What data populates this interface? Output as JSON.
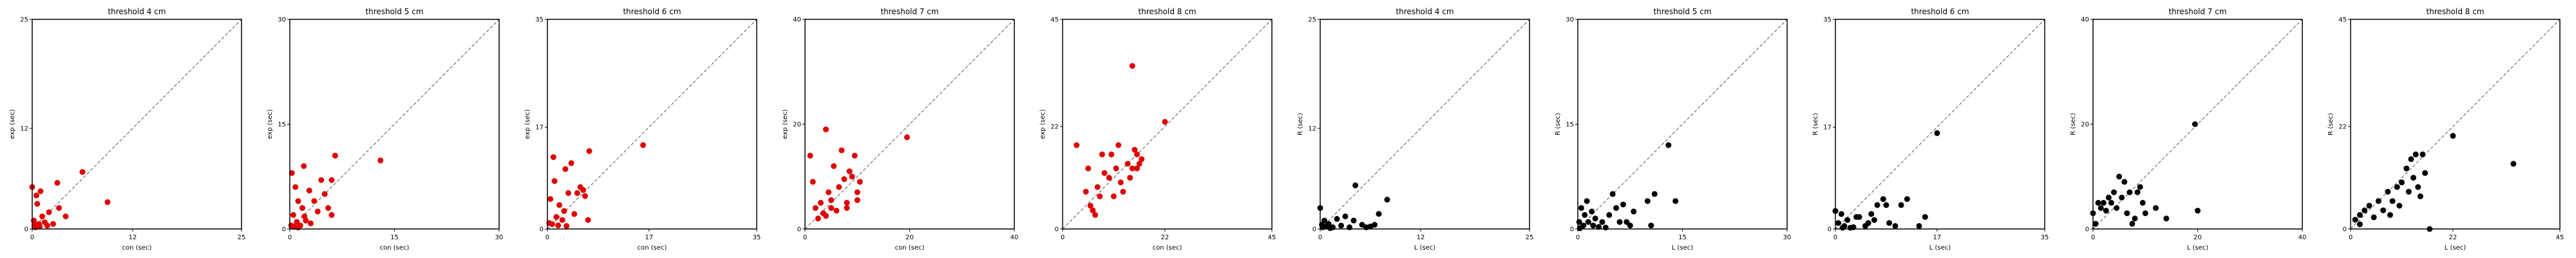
{
  "chart_data": [
    {
      "type": "scatter",
      "title": "threshold 4 cm",
      "xlabel": "con (sec)",
      "ylabel": "exp (sec)",
      "xlim": [
        0,
        25
      ],
      "ylim": [
        0,
        25
      ],
      "ticks": [
        0,
        12,
        25
      ],
      "color": "#e00000",
      "points": [
        [
          0,
          5
        ],
        [
          0.2,
          1
        ],
        [
          0.3,
          0.5
        ],
        [
          0.5,
          4
        ],
        [
          0.6,
          3
        ],
        [
          0.8,
          0.6
        ],
        [
          1,
          4.5
        ],
        [
          1.2,
          1.5
        ],
        [
          1.5,
          0.8
        ],
        [
          2,
          2
        ],
        [
          0.4,
          0.2
        ],
        [
          0.9,
          0.3
        ],
        [
          2.5,
          0.6
        ],
        [
          3,
          5.5
        ],
        [
          4,
          1.5
        ],
        [
          6,
          6.8
        ],
        [
          9,
          3.2
        ],
        [
          3.2,
          2.5
        ],
        [
          1.8,
          0.4
        ]
      ]
    },
    {
      "type": "scatter",
      "title": "threshold 5 cm",
      "xlabel": "con (sec)",
      "ylabel": "exp (sec)",
      "xlim": [
        0,
        30
      ],
      "ylim": [
        0,
        30
      ],
      "ticks": [
        0,
        15,
        30
      ],
      "color": "#e00000",
      "points": [
        [
          0.2,
          0.5
        ],
        [
          0.5,
          2
        ],
        [
          0.8,
          6
        ],
        [
          1,
          1
        ],
        [
          1.2,
          4
        ],
        [
          1.5,
          0.5
        ],
        [
          1.8,
          3
        ],
        [
          2,
          9
        ],
        [
          2.3,
          1.2
        ],
        [
          2.8,
          5.5
        ],
        [
          3,
          0.8
        ],
        [
          3.5,
          4
        ],
        [
          4,
          2.5
        ],
        [
          4.5,
          7
        ],
        [
          5,
          5
        ],
        [
          5.5,
          3
        ],
        [
          6,
          7
        ],
        [
          6,
          2
        ],
        [
          6.5,
          10.5
        ],
        [
          0.3,
          8
        ],
        [
          1.2,
          0.2
        ],
        [
          0.6,
          0.3
        ],
        [
          13,
          9.8
        ],
        [
          2.1,
          1.8
        ]
      ]
    },
    {
      "type": "scatter",
      "title": "threshold 6 cm",
      "xlabel": "con (sec)",
      "ylabel": "exp (sec)",
      "xlim": [
        0,
        35
      ],
      "ylim": [
        0,
        35
      ],
      "ticks": [
        0,
        17,
        35
      ],
      "color": "#e00000",
      "points": [
        [
          0.3,
          1
        ],
        [
          0.5,
          5
        ],
        [
          1,
          12
        ],
        [
          1.2,
          8
        ],
        [
          1.5,
          2
        ],
        [
          2,
          4
        ],
        [
          2.5,
          1.5
        ],
        [
          2.8,
          3
        ],
        [
          3,
          10
        ],
        [
          3.2,
          0.5
        ],
        [
          3.5,
          6
        ],
        [
          4,
          11
        ],
        [
          4.5,
          2.5
        ],
        [
          5,
          6
        ],
        [
          5.5,
          7
        ],
        [
          6,
          6.5
        ],
        [
          6.3,
          5.5
        ],
        [
          6.8,
          1.5
        ],
        [
          7,
          13
        ],
        [
          16,
          14
        ],
        [
          1.8,
          0.6
        ],
        [
          0.8,
          0.8
        ]
      ]
    },
    {
      "type": "scatter",
      "title": "threshold 7 cm",
      "xlabel": "con (sec)",
      "ylabel": "exp (sec)",
      "xlim": [
        0,
        40
      ],
      "ylim": [
        0,
        40
      ],
      "ticks": [
        0,
        20,
        40
      ],
      "color": "#e00000",
      "points": [
        [
          1,
          14
        ],
        [
          1.5,
          9
        ],
        [
          2,
          4
        ],
        [
          2.5,
          2
        ],
        [
          3,
          5
        ],
        [
          3.5,
          3
        ],
        [
          4,
          2.5
        ],
        [
          4.5,
          7
        ],
        [
          4,
          19
        ],
        [
          5,
          4
        ],
        [
          5.5,
          12
        ],
        [
          6,
          3.5
        ],
        [
          6.5,
          8
        ],
        [
          7,
          15
        ],
        [
          7.5,
          9.5
        ],
        [
          8,
          5
        ],
        [
          8,
          4
        ],
        [
          8.5,
          11
        ],
        [
          9,
          10
        ],
        [
          9.5,
          14
        ],
        [
          10,
          7
        ],
        [
          10.5,
          9
        ],
        [
          10,
          5.5
        ],
        [
          19.5,
          17.5
        ],
        [
          5,
          5.5
        ]
      ]
    },
    {
      "type": "scatter",
      "title": "threshold 8 cm",
      "xlabel": "con (sec)",
      "ylabel": "exp (sec)",
      "xlim": [
        0,
        45
      ],
      "ylim": [
        0,
        45
      ],
      "ticks": [
        0,
        22,
        45
      ],
      "color": "#e00000",
      "points": [
        [
          3,
          18
        ],
        [
          5,
          8
        ],
        [
          5.5,
          13
        ],
        [
          6,
          5
        ],
        [
          6.5,
          4
        ],
        [
          7,
          3
        ],
        [
          7.5,
          9
        ],
        [
          8,
          7
        ],
        [
          8.5,
          16
        ],
        [
          9,
          12
        ],
        [
          10,
          11
        ],
        [
          10.5,
          16
        ],
        [
          11,
          7
        ],
        [
          11.5,
          13
        ],
        [
          12,
          18
        ],
        [
          12.5,
          10
        ],
        [
          13,
          8
        ],
        [
          14,
          14
        ],
        [
          14.5,
          11
        ],
        [
          15,
          13
        ],
        [
          15.5,
          17
        ],
        [
          16,
          16
        ],
        [
          16.5,
          14
        ],
        [
          17,
          15
        ],
        [
          15,
          35
        ],
        [
          22,
          23
        ],
        [
          16,
          13
        ]
      ]
    },
    {
      "type": "scatter",
      "title": "threshold 4 cm",
      "xlabel": "L (sec)",
      "ylabel": "R (sec)",
      "xlim": [
        0,
        25
      ],
      "ylim": [
        0,
        25
      ],
      "ticks": [
        0,
        12,
        25
      ],
      "color": "#000000",
      "points": [
        [
          0,
          2.5
        ],
        [
          0.2,
          0.5
        ],
        [
          0.5,
          1
        ],
        [
          0.8,
          0.3
        ],
        [
          1,
          0.6
        ],
        [
          1.5,
          0.2
        ],
        [
          2,
          1.2
        ],
        [
          2.5,
          0.4
        ],
        [
          3,
          1.5
        ],
        [
          3.5,
          0.2
        ],
        [
          4,
          1
        ],
        [
          4.2,
          5.2
        ],
        [
          5,
          0.5
        ],
        [
          5.5,
          0.2
        ],
        [
          6,
          0.3
        ],
        [
          6.5,
          0.5
        ],
        [
          7,
          1.8
        ],
        [
          8,
          3.5
        ],
        [
          1.2,
          0.1
        ],
        [
          0.3,
          0.2
        ]
      ]
    },
    {
      "type": "scatter",
      "title": "threshold 5 cm",
      "xlabel": "L (sec)",
      "ylabel": "R (sec)",
      "xlim": [
        0,
        30
      ],
      "ylim": [
        0,
        30
      ],
      "ticks": [
        0,
        15,
        30
      ],
      "color": "#000000",
      "points": [
        [
          0.2,
          1
        ],
        [
          0.5,
          3
        ],
        [
          0.8,
          0.5
        ],
        [
          1,
          2
        ],
        [
          1.3,
          4
        ],
        [
          1.5,
          1
        ],
        [
          2,
          2.5
        ],
        [
          2.2,
          0.5
        ],
        [
          2.5,
          1.5
        ],
        [
          3,
          0.3
        ],
        [
          3.5,
          1
        ],
        [
          4,
          0.2
        ],
        [
          4.5,
          2
        ],
        [
          5,
          5
        ],
        [
          5.5,
          3
        ],
        [
          6,
          1
        ],
        [
          6.5,
          3.5
        ],
        [
          7,
          1
        ],
        [
          7.5,
          0.5
        ],
        [
          8,
          2.5
        ],
        [
          10,
          4
        ],
        [
          10.5,
          0.5
        ],
        [
          11,
          5
        ],
        [
          13,
          12
        ],
        [
          14,
          4
        ],
        [
          0.3,
          0.1
        ]
      ]
    },
    {
      "type": "scatter",
      "title": "threshold 6 cm",
      "xlabel": "L (sec)",
      "ylabel": "R (sec)",
      "xlim": [
        0,
        35
      ],
      "ylim": [
        0,
        35
      ],
      "ticks": [
        0,
        17,
        35
      ],
      "color": "#000000",
      "points": [
        [
          0,
          3
        ],
        [
          0.5,
          1
        ],
        [
          1,
          2.5
        ],
        [
          1.5,
          0.5
        ],
        [
          2,
          1.5
        ],
        [
          2.5,
          0.2
        ],
        [
          3,
          0.3
        ],
        [
          3.5,
          2
        ],
        [
          4,
          2
        ],
        [
          5,
          0.5
        ],
        [
          5.5,
          1
        ],
        [
          6,
          2.5
        ],
        [
          6.5,
          1.5
        ],
        [
          7,
          4
        ],
        [
          8,
          5
        ],
        [
          8.5,
          4
        ],
        [
          9,
          1
        ],
        [
          10,
          0.5
        ],
        [
          11,
          4
        ],
        [
          12,
          5
        ],
        [
          14,
          0.5
        ],
        [
          15,
          2
        ],
        [
          17,
          16
        ],
        [
          3,
          0.3
        ],
        [
          1.2,
          0.2
        ]
      ]
    },
    {
      "type": "scatter",
      "title": "threshold 7 cm",
      "xlabel": "L (sec)",
      "ylabel": "R (sec)",
      "xlim": [
        0,
        40
      ],
      "ylim": [
        0,
        40
      ],
      "ticks": [
        0,
        20,
        40
      ],
      "color": "#000000",
      "points": [
        [
          0,
          3
        ],
        [
          1,
          5
        ],
        [
          1.5,
          4
        ],
        [
          2,
          5
        ],
        [
          2.5,
          3.5
        ],
        [
          3,
          6
        ],
        [
          3.5,
          5
        ],
        [
          4,
          7
        ],
        [
          4.5,
          4
        ],
        [
          5,
          10
        ],
        [
          5.5,
          6
        ],
        [
          6,
          9
        ],
        [
          6.5,
          3
        ],
        [
          7,
          7
        ],
        [
          7.5,
          1
        ],
        [
          8,
          2
        ],
        [
          8.5,
          7
        ],
        [
          9,
          8
        ],
        [
          9.5,
          5
        ],
        [
          10,
          3
        ],
        [
          12,
          4
        ],
        [
          14,
          2
        ],
        [
          19.5,
          20
        ],
        [
          20,
          3.5
        ],
        [
          0.5,
          1
        ]
      ]
    },
    {
      "type": "scatter",
      "title": "threshold 8 cm",
      "xlabel": "L (sec)",
      "ylabel": "R (sec)",
      "xlim": [
        0,
        45
      ],
      "ylim": [
        0,
        45
      ],
      "ticks": [
        0,
        22,
        45
      ],
      "color": "#000000",
      "points": [
        [
          1,
          2
        ],
        [
          2,
          3
        ],
        [
          3,
          4
        ],
        [
          4,
          5
        ],
        [
          5,
          2.5
        ],
        [
          6,
          6
        ],
        [
          7,
          4
        ],
        [
          8,
          8
        ],
        [
          8.5,
          3
        ],
        [
          9,
          6
        ],
        [
          10,
          9
        ],
        [
          10.5,
          5
        ],
        [
          11,
          10
        ],
        [
          12,
          13
        ],
        [
          12.5,
          8
        ],
        [
          13,
          15
        ],
        [
          13.5,
          11
        ],
        [
          14,
          16
        ],
        [
          14.5,
          9
        ],
        [
          15,
          7
        ],
        [
          15.5,
          16
        ],
        [
          16,
          12
        ],
        [
          17,
          0
        ],
        [
          22,
          20
        ],
        [
          35,
          14
        ],
        [
          2,
          1
        ]
      ]
    }
  ]
}
